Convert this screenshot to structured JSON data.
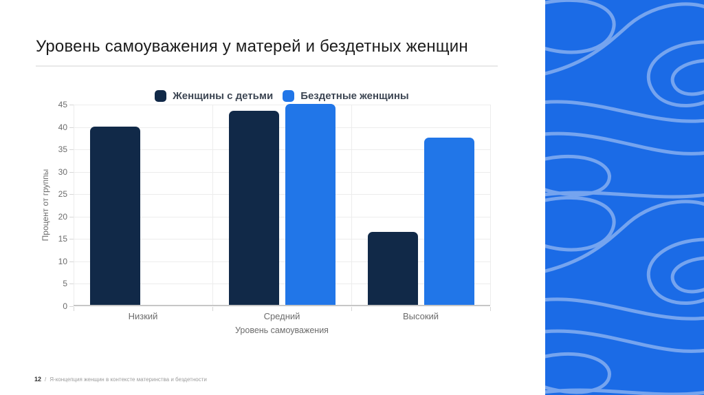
{
  "slide": {
    "title": "Уровень самоуважения у матерей и бездетных женщин"
  },
  "chart_data": {
    "type": "bar",
    "title": "",
    "categories": [
      "Низкий",
      "Средний",
      "Высокий"
    ],
    "series": [
      {
        "name": "Женщины с детьми",
        "color": "#112948",
        "values": [
          39.8,
          43.3,
          16.3
        ]
      },
      {
        "name": "Бездетные женщины",
        "color": "#2176e8",
        "values": [
          null,
          44.8,
          37.3
        ]
      }
    ],
    "xlabel": "Уровень самоуважения",
    "ylabel": "Процент от группы",
    "ylim": [
      0,
      45
    ],
    "ytick_step": 5,
    "grid": true,
    "legend_position": "top"
  },
  "footer": {
    "page": "12",
    "separator": "/",
    "text": "Я-концепция женщин в контексте материнства и бездетности"
  },
  "theme": {
    "panel_color": "#1b6be6",
    "panel_wave_color": "#7fabf1",
    "series_dark": "#112948",
    "series_blue": "#2176e8"
  }
}
